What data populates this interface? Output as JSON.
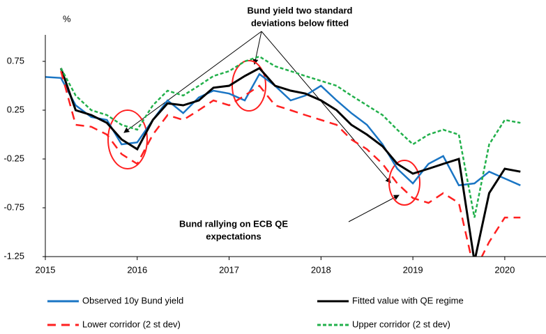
{
  "chart_data": {
    "type": "line",
    "unit_label": "%",
    "annotations": [
      [
        "Bund yield two standard",
        "deviations below fitted"
      ],
      [
        "Bund rallying  on ECB QE",
        "expectations"
      ]
    ],
    "x": [
      2015.0,
      2015.17,
      2015.33,
      2015.5,
      2015.67,
      2015.83,
      2016.0,
      2016.17,
      2016.33,
      2016.5,
      2016.67,
      2016.83,
      2017.0,
      2017.17,
      2017.33,
      2017.5,
      2017.67,
      2017.83,
      2018.0,
      2018.17,
      2018.33,
      2018.5,
      2018.67,
      2018.83,
      2019.0,
      2019.17,
      2019.33,
      2019.5,
      2019.67,
      2019.83,
      2020.0,
      2020.17
    ],
    "series": [
      {
        "name": "Observed 10y Bund yield",
        "color": "#1a75c4",
        "dash": "solid",
        "values": [
          0.59,
          0.58,
          0.3,
          0.18,
          0.15,
          -0.1,
          -0.08,
          0.15,
          0.35,
          0.22,
          0.38,
          0.45,
          0.42,
          0.35,
          0.62,
          0.5,
          0.35,
          0.4,
          0.5,
          0.35,
          0.22,
          0.1,
          -0.1,
          -0.35,
          -0.5,
          -0.3,
          -0.22,
          -0.52,
          -0.5,
          -0.38,
          -0.45,
          -0.52
        ]
      },
      {
        "name": "Fitted value with QE regime",
        "color": "#000000",
        "dash": "solid",
        "values": [
          null,
          0.68,
          0.25,
          0.2,
          0.12,
          -0.05,
          -0.15,
          0.15,
          0.32,
          0.3,
          0.35,
          0.48,
          0.5,
          0.6,
          0.68,
          0.5,
          0.45,
          0.42,
          0.35,
          0.25,
          0.1,
          0.0,
          -0.12,
          -0.3,
          -0.4,
          -0.35,
          -0.3,
          -0.25,
          -1.3,
          -0.6,
          -0.35,
          -0.38
        ]
      },
      {
        "name": "Lower corridor (2 st dev)",
        "color": "#ff2020",
        "dash": "long",
        "values": [
          null,
          0.65,
          0.1,
          0.08,
          0.0,
          -0.2,
          -0.3,
          0.0,
          0.2,
          0.15,
          0.25,
          0.35,
          0.3,
          0.4,
          0.5,
          0.3,
          0.25,
          0.2,
          0.15,
          0.1,
          -0.05,
          -0.15,
          -0.3,
          -0.5,
          -0.65,
          -0.7,
          -0.6,
          -0.7,
          -1.4,
          -1.1,
          -0.85,
          -0.85
        ]
      },
      {
        "name": "Upper corridor (2 st dev)",
        "color": "#22b04b",
        "dash": "short",
        "values": [
          null,
          0.68,
          0.4,
          0.25,
          0.2,
          0.1,
          0.05,
          0.3,
          0.45,
          0.4,
          0.5,
          0.6,
          0.65,
          0.75,
          0.8,
          0.7,
          0.65,
          0.6,
          0.55,
          0.5,
          0.4,
          0.3,
          0.2,
          0.05,
          -0.1,
          0.0,
          0.05,
          0.0,
          -0.85,
          -0.1,
          0.15,
          0.12
        ]
      }
    ],
    "xlim": [
      2015,
      2020.35
    ],
    "xticks": [
      2015,
      2016,
      2017,
      2018,
      2019,
      2020
    ],
    "ylim": [
      -1.25,
      0.95
    ],
    "yticks": [
      0.75,
      0.25,
      -0.25,
      -0.75,
      -1.25
    ]
  }
}
